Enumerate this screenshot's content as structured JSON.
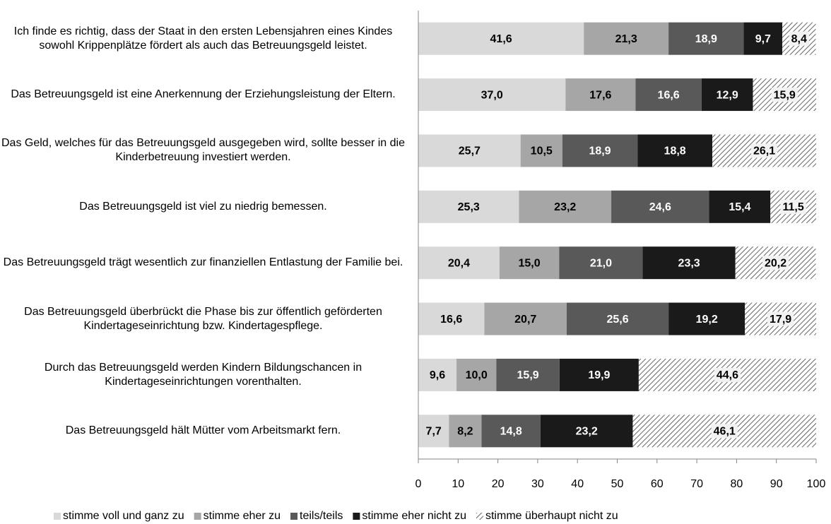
{
  "chart_data": {
    "type": "stacked_barh",
    "categories": [
      "Ich finde es richtig, dass der Staat in den ersten Lebensjahren eines Kindes sowohl Krippenplätze fördert als auch das Betreuungsgeld leistet.",
      "Das Betreuungsgeld ist eine Anerkennung der Erziehungsleistung der Eltern.",
      "Das Geld, welches für das Betreuungsgeld ausgegeben wird, sollte besser in die Kinderbetreuung investiert werden.",
      "Das Betreuungsgeld ist viel zu niedrig bemessen.",
      "Das Betreuungsgeld trägt wesentlich zur finanziellen Entlastung der Familie bei.",
      "Das Betreuungsgeld überbrückt die Phase bis zur öffentlich geförderten Kindertageseinrichtung bzw. Kindertagespflege.",
      "Durch das Betreuungsgeld werden Kindern Bildungschancen in Kindertageseinrichtungen vorenthalten.",
      "Das Betreuungsgeld hält Mütter vom Arbeitsmarkt fern."
    ],
    "series": [
      {
        "name": "stimme voll und ganz zu",
        "color": "#d9d9d9",
        "values": [
          41.6,
          37.0,
          25.7,
          25.3,
          20.4,
          16.6,
          9.6,
          7.7
        ],
        "value_labels": [
          "41,6",
          "37,0",
          "25,7",
          "25,3",
          "20,4",
          "16,6",
          "9,6",
          "7,7"
        ]
      },
      {
        "name": "stimme eher zu",
        "color": "#a6a6a6",
        "values": [
          21.3,
          17.6,
          10.5,
          23.2,
          15.0,
          20.7,
          10.0,
          8.2
        ],
        "value_labels": [
          "21,3",
          "17,6",
          "10,5",
          "23,2",
          "15,0",
          "20,7",
          "10,0",
          "8,2"
        ]
      },
      {
        "name": "teils/teils",
        "color": "#595959",
        "values": [
          18.9,
          16.6,
          18.9,
          24.6,
          21.0,
          25.6,
          15.9,
          14.8
        ],
        "value_labels": [
          "18,9",
          "16,6",
          "18,9",
          "24,6",
          "21,0",
          "25,6",
          "15,9",
          "14,8"
        ]
      },
      {
        "name": "stimme eher nicht zu",
        "color": "#1a1a1a",
        "values": [
          9.7,
          12.9,
          18.8,
          15.4,
          23.3,
          19.2,
          19.9,
          23.2
        ],
        "value_labels": [
          "9,7",
          "12,9",
          "18,8",
          "15,4",
          "23,3",
          "19,2",
          "19,9",
          "23,2"
        ]
      },
      {
        "name": "stimme überhaupt nicht zu",
        "color": "#404040",
        "pattern": "hatch",
        "values": [
          8.4,
          15.9,
          26.1,
          11.5,
          20.2,
          17.9,
          44.6,
          46.1
        ],
        "value_labels": [
          "8,4",
          "15,9",
          "26,1",
          "11,5",
          "20,2",
          "17,9",
          "44,6",
          "46,1"
        ]
      }
    ],
    "xlim": [
      0,
      100
    ],
    "xticks": [
      0,
      10,
      20,
      30,
      40,
      50,
      60,
      70,
      80,
      90,
      100
    ],
    "legend": "bottom"
  }
}
